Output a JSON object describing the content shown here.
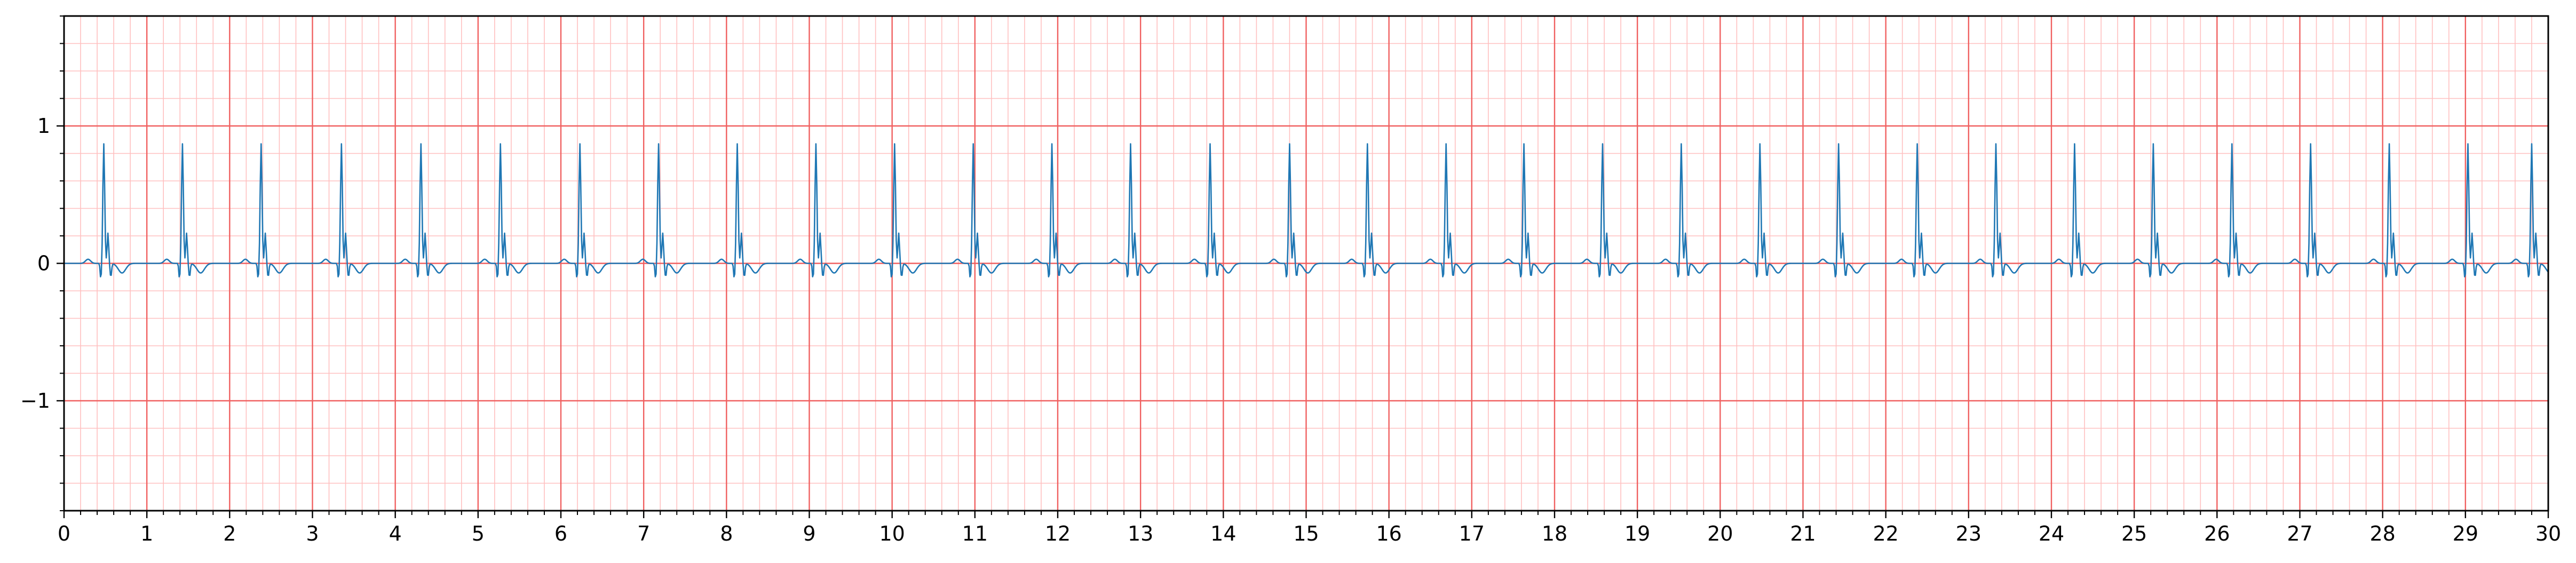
{
  "chart_data": {
    "type": "line",
    "title": "",
    "xlabel": "",
    "ylabel": "",
    "xlim": [
      0,
      30
    ],
    "ylim": [
      -1.8,
      1.8
    ],
    "x_major_ticks": [
      0,
      1,
      2,
      3,
      4,
      5,
      6,
      7,
      8,
      9,
      10,
      11,
      12,
      13,
      14,
      15,
      16,
      17,
      18,
      19,
      20,
      21,
      22,
      23,
      24,
      25,
      26,
      27,
      28,
      29,
      30
    ],
    "x_tick_labels": [
      "0",
      "1",
      "2",
      "3",
      "4",
      "5",
      "6",
      "7",
      "8",
      "9",
      "10",
      "11",
      "12",
      "13",
      "14",
      "15",
      "16",
      "17",
      "18",
      "19",
      "20",
      "21",
      "22",
      "23",
      "24",
      "25",
      "26",
      "27",
      "28",
      "29",
      "30"
    ],
    "y_major_ticks": [
      -1,
      0,
      1
    ],
    "y_tick_labels": [
      "−1",
      "0",
      "1"
    ],
    "grid": {
      "major": true,
      "minor": true,
      "x_major_step": 1,
      "x_minor_step": 0.2,
      "y_major_step": 1,
      "y_minor_step": 0.2
    },
    "colors": {
      "major_grid": "#f06060",
      "minor_grid": "#ffc0c0",
      "trace": "#1f77b4"
    },
    "series": [
      {
        "sampling_interval_s": 0.01,
        "r_peak_times_s": [
          0.48,
          1.43,
          2.38,
          3.35,
          4.31,
          5.27,
          6.23,
          7.18,
          8.13,
          9.08,
          10.03,
          10.98,
          11.93,
          12.88,
          13.84,
          14.8,
          15.74,
          16.69,
          17.63,
          18.58,
          19.53,
          20.48,
          21.43,
          22.38,
          23.33,
          24.28,
          25.23,
          26.18,
          27.13,
          28.08,
          29.03,
          29.8
        ],
        "r_peak_amplitude": 0.87,
        "q_amplitude": -0.12,
        "s_amplitude": -0.1,
        "baseline": 0.0
      }
    ]
  }
}
